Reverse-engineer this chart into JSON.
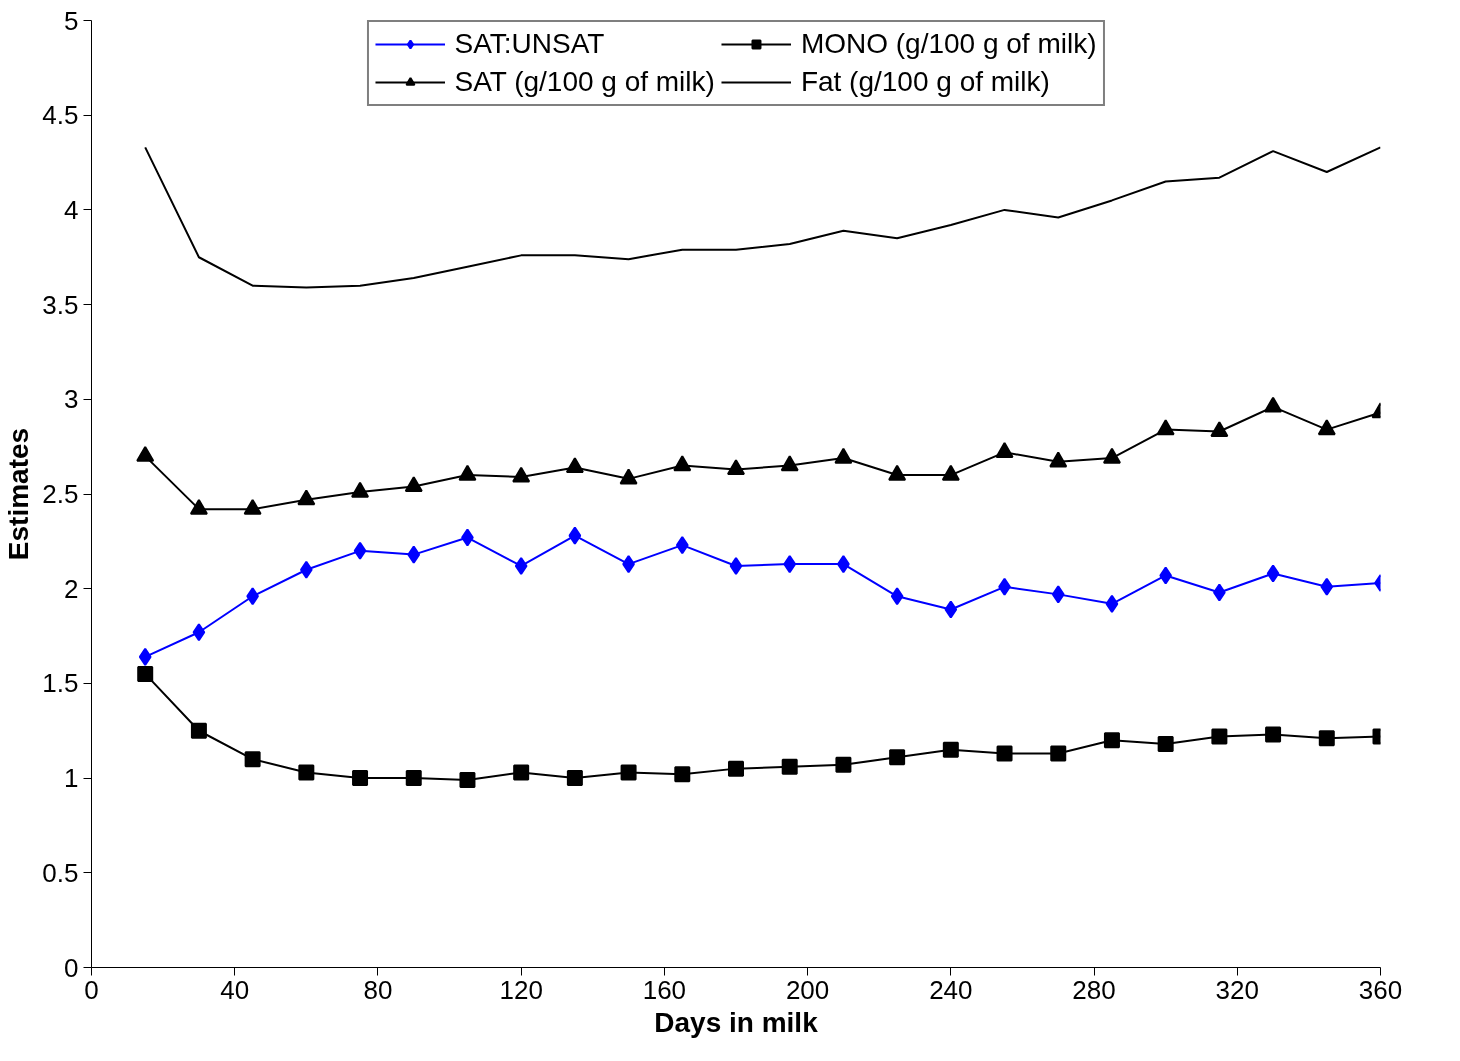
{
  "chart_data": {
    "type": "line",
    "xlabel": "Days in milk",
    "ylabel": "Estimates",
    "x": [
      15,
      30,
      45,
      60,
      75,
      90,
      105,
      120,
      135,
      150,
      165,
      180,
      195,
      210,
      225,
      240,
      255,
      270,
      285,
      300,
      315,
      330,
      345,
      360
    ],
    "series": [
      {
        "name": "SAT:UNSAT",
        "color": "#0000ff",
        "marker": "diamond",
        "values": [
          1.64,
          1.77,
          1.96,
          2.1,
          2.2,
          2.18,
          2.27,
          2.12,
          2.28,
          2.13,
          2.23,
          2.12,
          2.13,
          2.13,
          1.96,
          1.89,
          2.01,
          1.97,
          1.92,
          2.07,
          1.98,
          2.08,
          2.01,
          2.03
        ]
      },
      {
        "name": "MONO (g/100 g of milk)",
        "color": "#000000",
        "marker": "square",
        "values": [
          1.55,
          1.25,
          1.1,
          1.03,
          1.0,
          1.0,
          0.99,
          1.03,
          1.0,
          1.03,
          1.02,
          1.05,
          1.06,
          1.07,
          1.11,
          1.15,
          1.13,
          1.13,
          1.2,
          1.18,
          1.22,
          1.23,
          1.21,
          1.22
        ]
      },
      {
        "name": "SAT (g/100 g of milk)",
        "color": "#000000",
        "marker": "triangle",
        "values": [
          2.7,
          2.42,
          2.42,
          2.47,
          2.51,
          2.54,
          2.6,
          2.59,
          2.64,
          2.58,
          2.65,
          2.63,
          2.65,
          2.69,
          2.6,
          2.6,
          2.72,
          2.67,
          2.69,
          2.84,
          2.83,
          2.96,
          2.84,
          2.93
        ]
      },
      {
        "name": "Fat (g/100 g of milk)",
        "color": "#000000",
        "marker": "none",
        "values": [
          4.33,
          3.75,
          3.6,
          3.59,
          3.6,
          3.64,
          3.7,
          3.76,
          3.76,
          3.74,
          3.79,
          3.79,
          3.82,
          3.89,
          3.85,
          3.92,
          4.0,
          3.96,
          4.05,
          4.15,
          4.17,
          4.31,
          4.2,
          4.33
        ]
      }
    ],
    "xlim": [
      0,
      360
    ],
    "xticks": [
      0,
      40,
      80,
      120,
      160,
      200,
      240,
      280,
      320,
      360
    ],
    "ylim": [
      0,
      5
    ],
    "yticks": [
      0,
      0.5,
      1,
      1.5,
      2,
      2.5,
      3,
      3.5,
      4,
      4.5,
      5
    ],
    "grid": false,
    "legend": "top",
    "line_style": "solid"
  }
}
